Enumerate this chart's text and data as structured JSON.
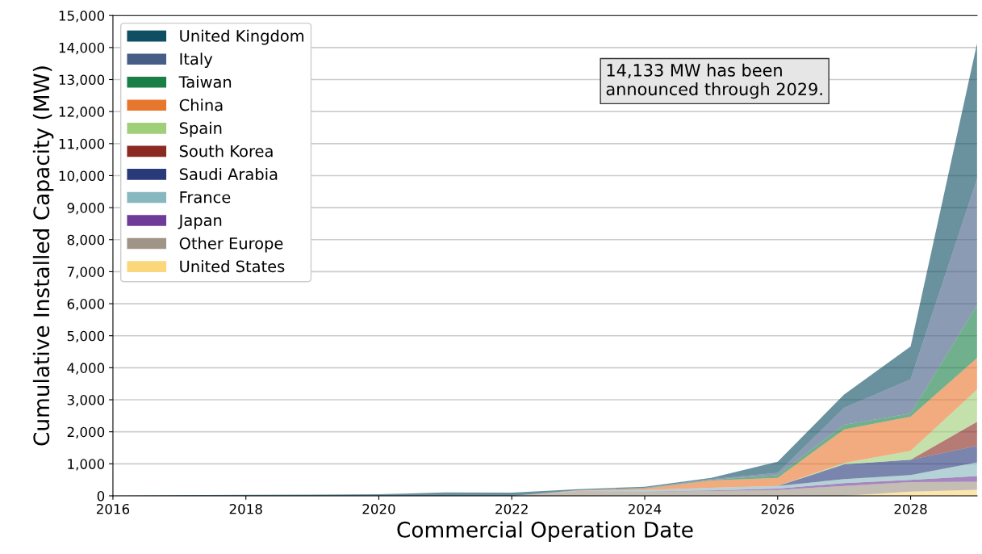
{
  "chart_data": {
    "type": "area",
    "stacked": true,
    "xlabel": "Commercial Operation Date",
    "ylabel": "Cumulative Installed Capacity (MW)",
    "x": [
      2016,
      2017,
      2018,
      2019,
      2020,
      2021,
      2022,
      2023,
      2024,
      2025,
      2026,
      2027,
      2028,
      2029
    ],
    "series": [
      {
        "name": "United States",
        "color": "#fad77a",
        "values": [
          0,
          0,
          0,
          0,
          0,
          0,
          0,
          0,
          0,
          0,
          0,
          0,
          130,
          190
        ]
      },
      {
        "name": "Other Europe",
        "color": "#a09486",
        "values": [
          0,
          0,
          0,
          0,
          0,
          0,
          0,
          150,
          130,
          150,
          185,
          310,
          300,
          250
        ]
      },
      {
        "name": "Japan",
        "color": "#6f3b98",
        "values": [
          0,
          0,
          0,
          0,
          0,
          0,
          0,
          0,
          5,
          20,
          42,
          85,
          70,
          180
        ]
      },
      {
        "name": "France",
        "color": "#87b7bf",
        "values": [
          0,
          0,
          0,
          0,
          0,
          0,
          0,
          10,
          50,
          80,
          83,
          126,
          150,
          426
        ]
      },
      {
        "name": "Saudi Arabia",
        "color": "#283a7a",
        "values": [
          0,
          0,
          0,
          0,
          0,
          0,
          0,
          0,
          0,
          0,
          0,
          461,
          477,
          517
        ]
      },
      {
        "name": "South Korea",
        "color": "#8b2a22",
        "values": [
          0,
          0,
          0,
          0,
          0,
          0,
          0,
          0,
          0,
          0,
          0,
          0,
          0,
          750
        ]
      },
      {
        "name": "Spain",
        "color": "#9fcf78",
        "values": [
          0,
          0,
          0,
          0,
          0,
          0,
          0,
          0,
          0,
          0,
          0,
          43,
          279,
          1006
        ]
      },
      {
        "name": "China",
        "color": "#e8772e",
        "values": [
          0,
          0,
          0,
          0,
          0,
          0,
          0,
          10,
          42,
          228,
          252,
          1048,
          1067,
          986
        ]
      },
      {
        "name": "Taiwan",
        "color": "#1a7f45",
        "values": [
          0,
          0,
          0,
          0,
          0,
          0,
          0,
          0,
          13,
          22,
          88,
          143,
          99,
          1649
        ]
      },
      {
        "name": "Italy",
        "color": "#465e86",
        "values": [
          0,
          0,
          0,
          0,
          0,
          0,
          0,
          5,
          10,
          20,
          70,
          530,
          1068,
          3946
        ]
      },
      {
        "name": "United Kingdom",
        "color": "#0f4e63",
        "values": [
          0,
          20,
          29,
          38,
          48,
          106,
          97,
          35,
          35,
          42,
          346,
          420,
          1026,
          4233
        ]
      }
    ],
    "xlim": [
      2016,
      2029
    ],
    "xticks": [
      2016,
      2018,
      2020,
      2022,
      2024,
      2026,
      2028
    ],
    "ylim": [
      0,
      15000
    ],
    "yticks": [
      {
        "value": 0,
        "label": "0"
      },
      {
        "value": 1000,
        "label": "1,000"
      },
      {
        "value": 2000,
        "label": "2,000"
      },
      {
        "value": 3000,
        "label": "3,000"
      },
      {
        "value": 4000,
        "label": "4,000"
      },
      {
        "value": 5000,
        "label": "5,000"
      },
      {
        "value": 6000,
        "label": "6,000"
      },
      {
        "value": 7000,
        "label": "7,000"
      },
      {
        "value": 8000,
        "label": "8,000"
      },
      {
        "value": 9000,
        "label": "9,000"
      },
      {
        "value": 10000,
        "label": "10,000"
      },
      {
        "value": 11000,
        "label": "11,000"
      },
      {
        "value": 12000,
        "label": "12,000"
      },
      {
        "value": 13000,
        "label": "13,000"
      },
      {
        "value": 14000,
        "label": "14,000"
      },
      {
        "value": 15000,
        "label": "15,000"
      }
    ],
    "grid": "y",
    "legend": "top left",
    "annotations": [
      "14,133 MW has been\nannounced through 2029."
    ]
  }
}
